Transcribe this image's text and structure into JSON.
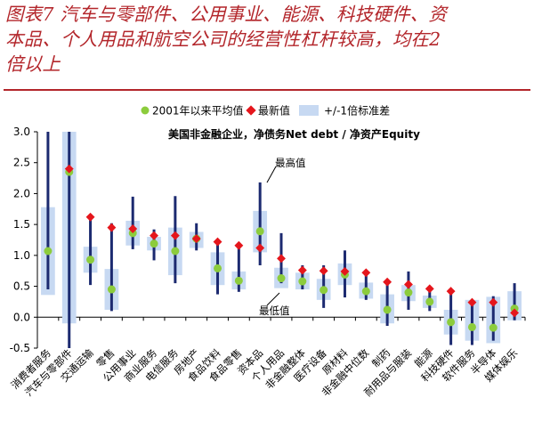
{
  "header": {
    "title_lines": [
      "图表7  汽车与零部件、公用事业、能源、科技硬件、资",
      "本品、个人用品和航空公司的经营性杠杆较高，均在2",
      "倍以上"
    ]
  },
  "chart_data": {
    "type": "box",
    "subtitle": "美国非金融企业，净债务Net debt / 净资产Equity",
    "ylim": [
      -0.5,
      3.0
    ],
    "yticks": [
      "3.0",
      "2.5",
      "2.0",
      "1.5",
      "1.0",
      "0.5",
      "0.0",
      "-0.5"
    ],
    "ytick_values": [
      3.0,
      2.5,
      2.0,
      1.5,
      1.0,
      0.5,
      0.0,
      -0.5
    ],
    "legend": {
      "placement": "top",
      "items": [
        "2001年以来平均值",
        "最新值",
        "+/-1倍标准差"
      ]
    },
    "annotations": {
      "max": "最高值",
      "min": "最低值"
    },
    "colors": {
      "band": "#c7d9f2",
      "range": "#1c2a70",
      "mean": "#8ccc3c",
      "latest": "#e5161c"
    },
    "categories": [
      "消费者服务",
      "汽车与零部件",
      "交通运输",
      "零售",
      "公用事业",
      "商业服务",
      "电信服务",
      "房地产",
      "食品饮料",
      "食品零售",
      "资本品",
      "个人用品",
      "非金融整体",
      "医疗设备",
      "原材料",
      "非金融中位数",
      "制药",
      "耐用品与服装",
      "能源",
      "科技硬件",
      "软件服务",
      "半导体",
      "媒体娱乐"
    ],
    "series": [
      {
        "name": "max",
        "values": [
          3.0,
          3.0,
          1.62,
          1.52,
          1.95,
          1.42,
          1.96,
          1.52,
          1.26,
          1.17,
          2.18,
          1.36,
          0.84,
          0.84,
          1.08,
          0.74,
          0.57,
          0.74,
          0.48,
          0.43,
          0.27,
          0.34,
          0.55
        ]
      },
      {
        "name": "min",
        "values": [
          0.45,
          -0.5,
          0.52,
          0.1,
          1.1,
          0.92,
          0.55,
          1.08,
          0.37,
          0.41,
          0.84,
          0.55,
          0.45,
          0.15,
          0.32,
          0.28,
          -0.14,
          0.12,
          0.1,
          -0.45,
          -0.45,
          -0.38,
          -0.05
        ]
      },
      {
        "name": "band_high",
        "values": [
          1.78,
          3.0,
          1.14,
          0.78,
          1.56,
          1.3,
          1.45,
          1.38,
          1.05,
          0.74,
          1.72,
          0.8,
          0.72,
          0.62,
          0.87,
          0.56,
          0.37,
          0.52,
          0.35,
          0.12,
          0.28,
          0.33,
          0.42
        ]
      },
      {
        "name": "band_low",
        "values": [
          0.36,
          -0.1,
          0.72,
          0.12,
          1.16,
          1.08,
          0.68,
          1.12,
          0.52,
          0.45,
          1.05,
          0.47,
          0.45,
          0.28,
          0.52,
          0.3,
          -0.1,
          0.26,
          0.15,
          -0.28,
          -0.38,
          -0.42,
          -0.05
        ]
      },
      {
        "name": "2001年以来平均值",
        "values": [
          1.07,
          2.35,
          0.93,
          0.45,
          1.36,
          1.19,
          1.07,
          1.27,
          0.79,
          0.59,
          1.39,
          0.63,
          0.58,
          0.44,
          0.69,
          0.42,
          0.12,
          0.4,
          0.25,
          -0.08,
          -0.16,
          -0.17,
          0.14
        ]
      },
      {
        "name": "最新值",
        "values": [
          null,
          2.4,
          1.62,
          1.45,
          1.43,
          1.32,
          1.32,
          1.27,
          1.22,
          1.16,
          1.12,
          0.95,
          0.76,
          0.75,
          0.74,
          0.72,
          0.57,
          0.53,
          0.46,
          0.42,
          0.24,
          0.24,
          0.07
        ]
      }
    ]
  }
}
